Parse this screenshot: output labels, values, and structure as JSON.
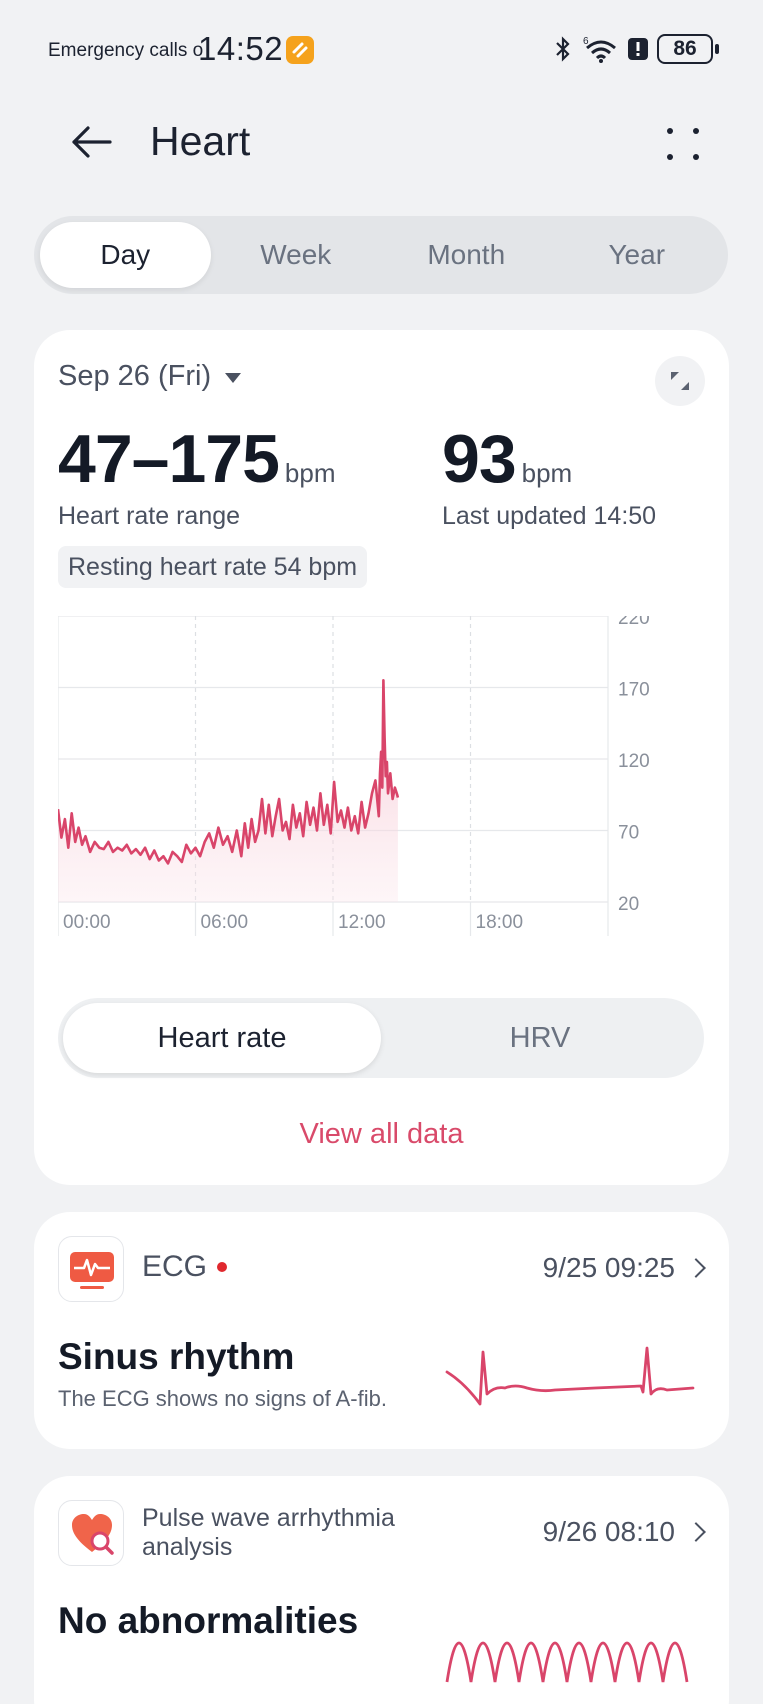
{
  "status": {
    "carrier": "Emergency calls o",
    "time": "14:52",
    "battery": "86",
    "network": "6"
  },
  "header": {
    "title": "Heart"
  },
  "tabs": [
    {
      "label": "Day",
      "active": true
    },
    {
      "label": "Week",
      "active": false
    },
    {
      "label": "Month",
      "active": false
    },
    {
      "label": "Year",
      "active": false
    }
  ],
  "summary": {
    "date": "Sep 26 (Fri)",
    "range_value": "47–175",
    "range_unit": "bpm",
    "range_label": "Heart rate range",
    "current_value": "93",
    "current_unit": "bpm",
    "current_label": "Last updated 14:50",
    "resting": "Resting heart rate 54 bpm"
  },
  "chart_data": {
    "type": "line",
    "title": "",
    "xlabel": "",
    "ylabel": "",
    "x_ticks": [
      "00:00",
      "06:00",
      "12:00",
      "18:00"
    ],
    "y_ticks": [
      220,
      170,
      120,
      70,
      20
    ],
    "ylim": [
      20,
      220
    ],
    "xlim_hours": [
      0,
      24
    ],
    "grid": true,
    "line_color": "#d9456a",
    "series": [
      {
        "name": "",
        "x_hours": [
          0.0,
          0.15,
          0.3,
          0.45,
          0.6,
          0.75,
          0.9,
          1.05,
          1.2,
          1.4,
          1.6,
          1.8,
          2.0,
          2.2,
          2.4,
          2.6,
          2.8,
          3.0,
          3.2,
          3.4,
          3.6,
          3.8,
          4.0,
          4.2,
          4.4,
          4.6,
          4.8,
          5.0,
          5.2,
          5.4,
          5.6,
          5.8,
          6.0,
          6.2,
          6.4,
          6.6,
          6.8,
          7.0,
          7.2,
          7.4,
          7.6,
          7.8,
          8.0,
          8.15,
          8.3,
          8.45,
          8.6,
          8.75,
          8.9,
          9.05,
          9.2,
          9.35,
          9.5,
          9.65,
          9.8,
          9.95,
          10.1,
          10.25,
          10.4,
          10.55,
          10.7,
          10.85,
          11.0,
          11.15,
          11.3,
          11.45,
          11.6,
          11.75,
          11.9,
          12.05,
          12.2,
          12.35,
          12.5,
          12.65,
          12.8,
          12.95,
          13.1,
          13.25,
          13.4,
          13.55,
          13.7,
          13.85,
          14.0,
          14.05,
          14.1,
          14.15,
          14.2,
          14.25,
          14.3,
          14.35,
          14.4,
          14.5,
          14.6,
          14.7,
          14.8,
          14.83
        ],
        "values": [
          85,
          65,
          78,
          58,
          82,
          62,
          72,
          60,
          66,
          55,
          62,
          58,
          57,
          62,
          55,
          58,
          56,
          60,
          54,
          57,
          53,
          58,
          50,
          56,
          49,
          52,
          47,
          55,
          52,
          48,
          60,
          54,
          58,
          52,
          62,
          68,
          58,
          72,
          60,
          66,
          55,
          70,
          52,
          75,
          58,
          78,
          62,
          70,
          92,
          68,
          88,
          66,
          80,
          92,
          70,
          76,
          64,
          88,
          72,
          82,
          66,
          90,
          74,
          86,
          70,
          96,
          74,
          88,
          68,
          104,
          76,
          84,
          72,
          86,
          70,
          80,
          68,
          90,
          72,
          82,
          96,
          105,
          80,
          110,
          125,
          100,
          175,
          135,
          108,
          118,
          96,
          110,
          92,
          100,
          95,
          93
        ]
      }
    ]
  },
  "metric_toggle": [
    {
      "label": "Heart rate",
      "active": true
    },
    {
      "label": "HRV",
      "active": false
    }
  ],
  "view_all": "View all data",
  "ecg": {
    "title": "ECG",
    "date": "9/25 09:25",
    "result": "Sinus rhythm",
    "result_sub": "The ECG shows no signs of A-fib."
  },
  "pulse": {
    "title": "Pulse wave arrhythmia analysis",
    "date": "9/26 08:10",
    "result": "No abnormalities"
  },
  "colors": {
    "accent": "#d94a6a",
    "background": "#f1f2f4",
    "card": "#ffffff",
    "notification_dot": "#e0282e",
    "app_badge": "#f5a21c"
  }
}
